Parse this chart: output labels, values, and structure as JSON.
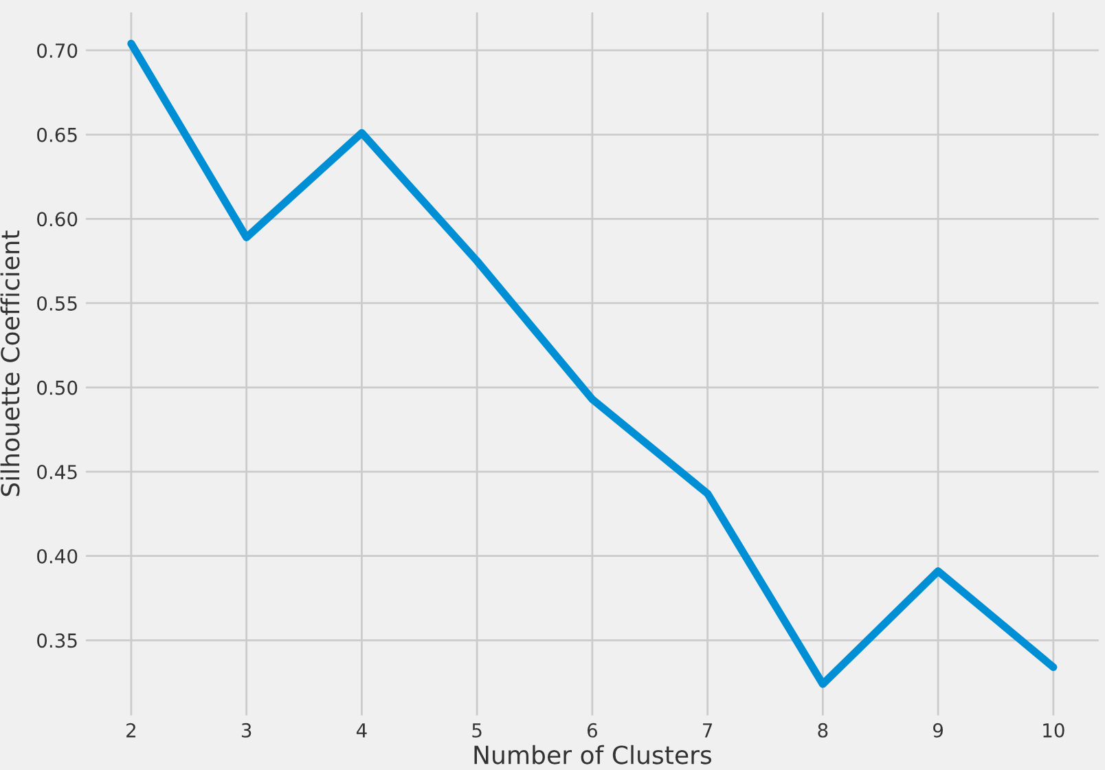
{
  "chart_data": {
    "type": "line",
    "xlabel": "Number of Clusters",
    "ylabel": "Silhouette Coefficient",
    "x": [
      2,
      3,
      4,
      5,
      6,
      7,
      8,
      9,
      10
    ],
    "series": [
      {
        "color": "#008fd5",
        "values": [
          0.704,
          0.589,
          0.651,
          0.575,
          0.493,
          0.437,
          0.324,
          0.391,
          0.334
        ]
      }
    ],
    "xlim": [
      1.6,
      10.4
    ],
    "ylim": [
      0.305,
      0.723
    ],
    "xticks": [
      2,
      3,
      4,
      5,
      6,
      7,
      8,
      9,
      10
    ],
    "yticks": [
      {
        "value": 0.35,
        "label": "0.35"
      },
      {
        "value": 0.4,
        "label": "0.40"
      },
      {
        "value": 0.45,
        "label": "0.45"
      },
      {
        "value": 0.5,
        "label": "0.50"
      },
      {
        "value": 0.55,
        "label": "0.55"
      },
      {
        "value": 0.6,
        "label": "0.60"
      },
      {
        "value": 0.65,
        "label": "0.65"
      },
      {
        "value": 0.7,
        "label": "0.70"
      }
    ],
    "grid": true,
    "marker": "none",
    "line_style": "solid",
    "legend": false
  }
}
